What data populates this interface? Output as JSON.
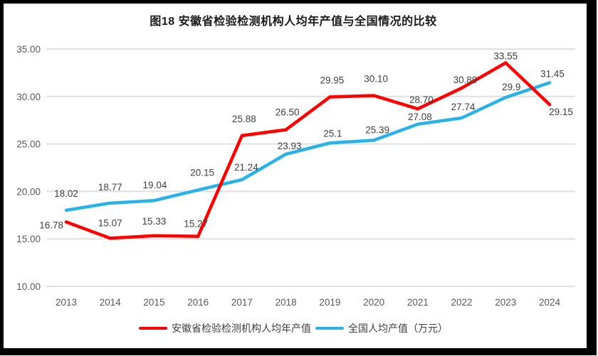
{
  "title": "图18 安徽省检验检测机构人均年产值与全国情况的比较",
  "chart_data": {
    "type": "line",
    "title": "图18 安徽省检验检测机构人均年产值与全国情况的比较",
    "categories": [
      "2013",
      "2014",
      "2015",
      "2016",
      "2017",
      "2018",
      "2019",
      "2020",
      "2021",
      "2022",
      "2023",
      "2024"
    ],
    "series": [
      {
        "name": "安徽省检验检测机构人均年产值",
        "color": "#fe0000",
        "values": [
          16.78,
          15.07,
          15.33,
          15.27,
          25.88,
          26.5,
          29.95,
          30.1,
          28.7,
          30.89,
          33.55,
          29.15
        ],
        "labels": [
          "16.78",
          "15.07",
          "15.33",
          "15.27",
          "25.88",
          "26.50",
          "29.95",
          "30.10",
          "28.70",
          "30.89",
          "33.55",
          "29.15"
        ]
      },
      {
        "name": "全国人均产值（万元）",
        "color": "#29b2e8",
        "values": [
          18.02,
          18.77,
          19.04,
          20.15,
          21.24,
          23.93,
          25.1,
          25.39,
          27.08,
          27.74,
          29.9,
          31.45
        ],
        "labels": [
          "18.02",
          "18.77",
          "19.04",
          "20.15",
          "21.24",
          "23.93",
          "25.1",
          "25.39",
          "27.08",
          "27.74",
          "29.9",
          "31.45"
        ]
      }
    ],
    "xlabel": "",
    "ylabel": "",
    "ylim": [
      10,
      35
    ],
    "yticks": [
      "35.00",
      "30.00",
      "25.00",
      "20.00",
      "15.00",
      "10.00"
    ],
    "grid": true,
    "legend_position": "bottom",
    "colors": {
      "grid_line": "#e0e0e0",
      "axis_label": "#595959",
      "data_label": "#3f3f3f",
      "title_text": "#1a1a1a"
    }
  }
}
